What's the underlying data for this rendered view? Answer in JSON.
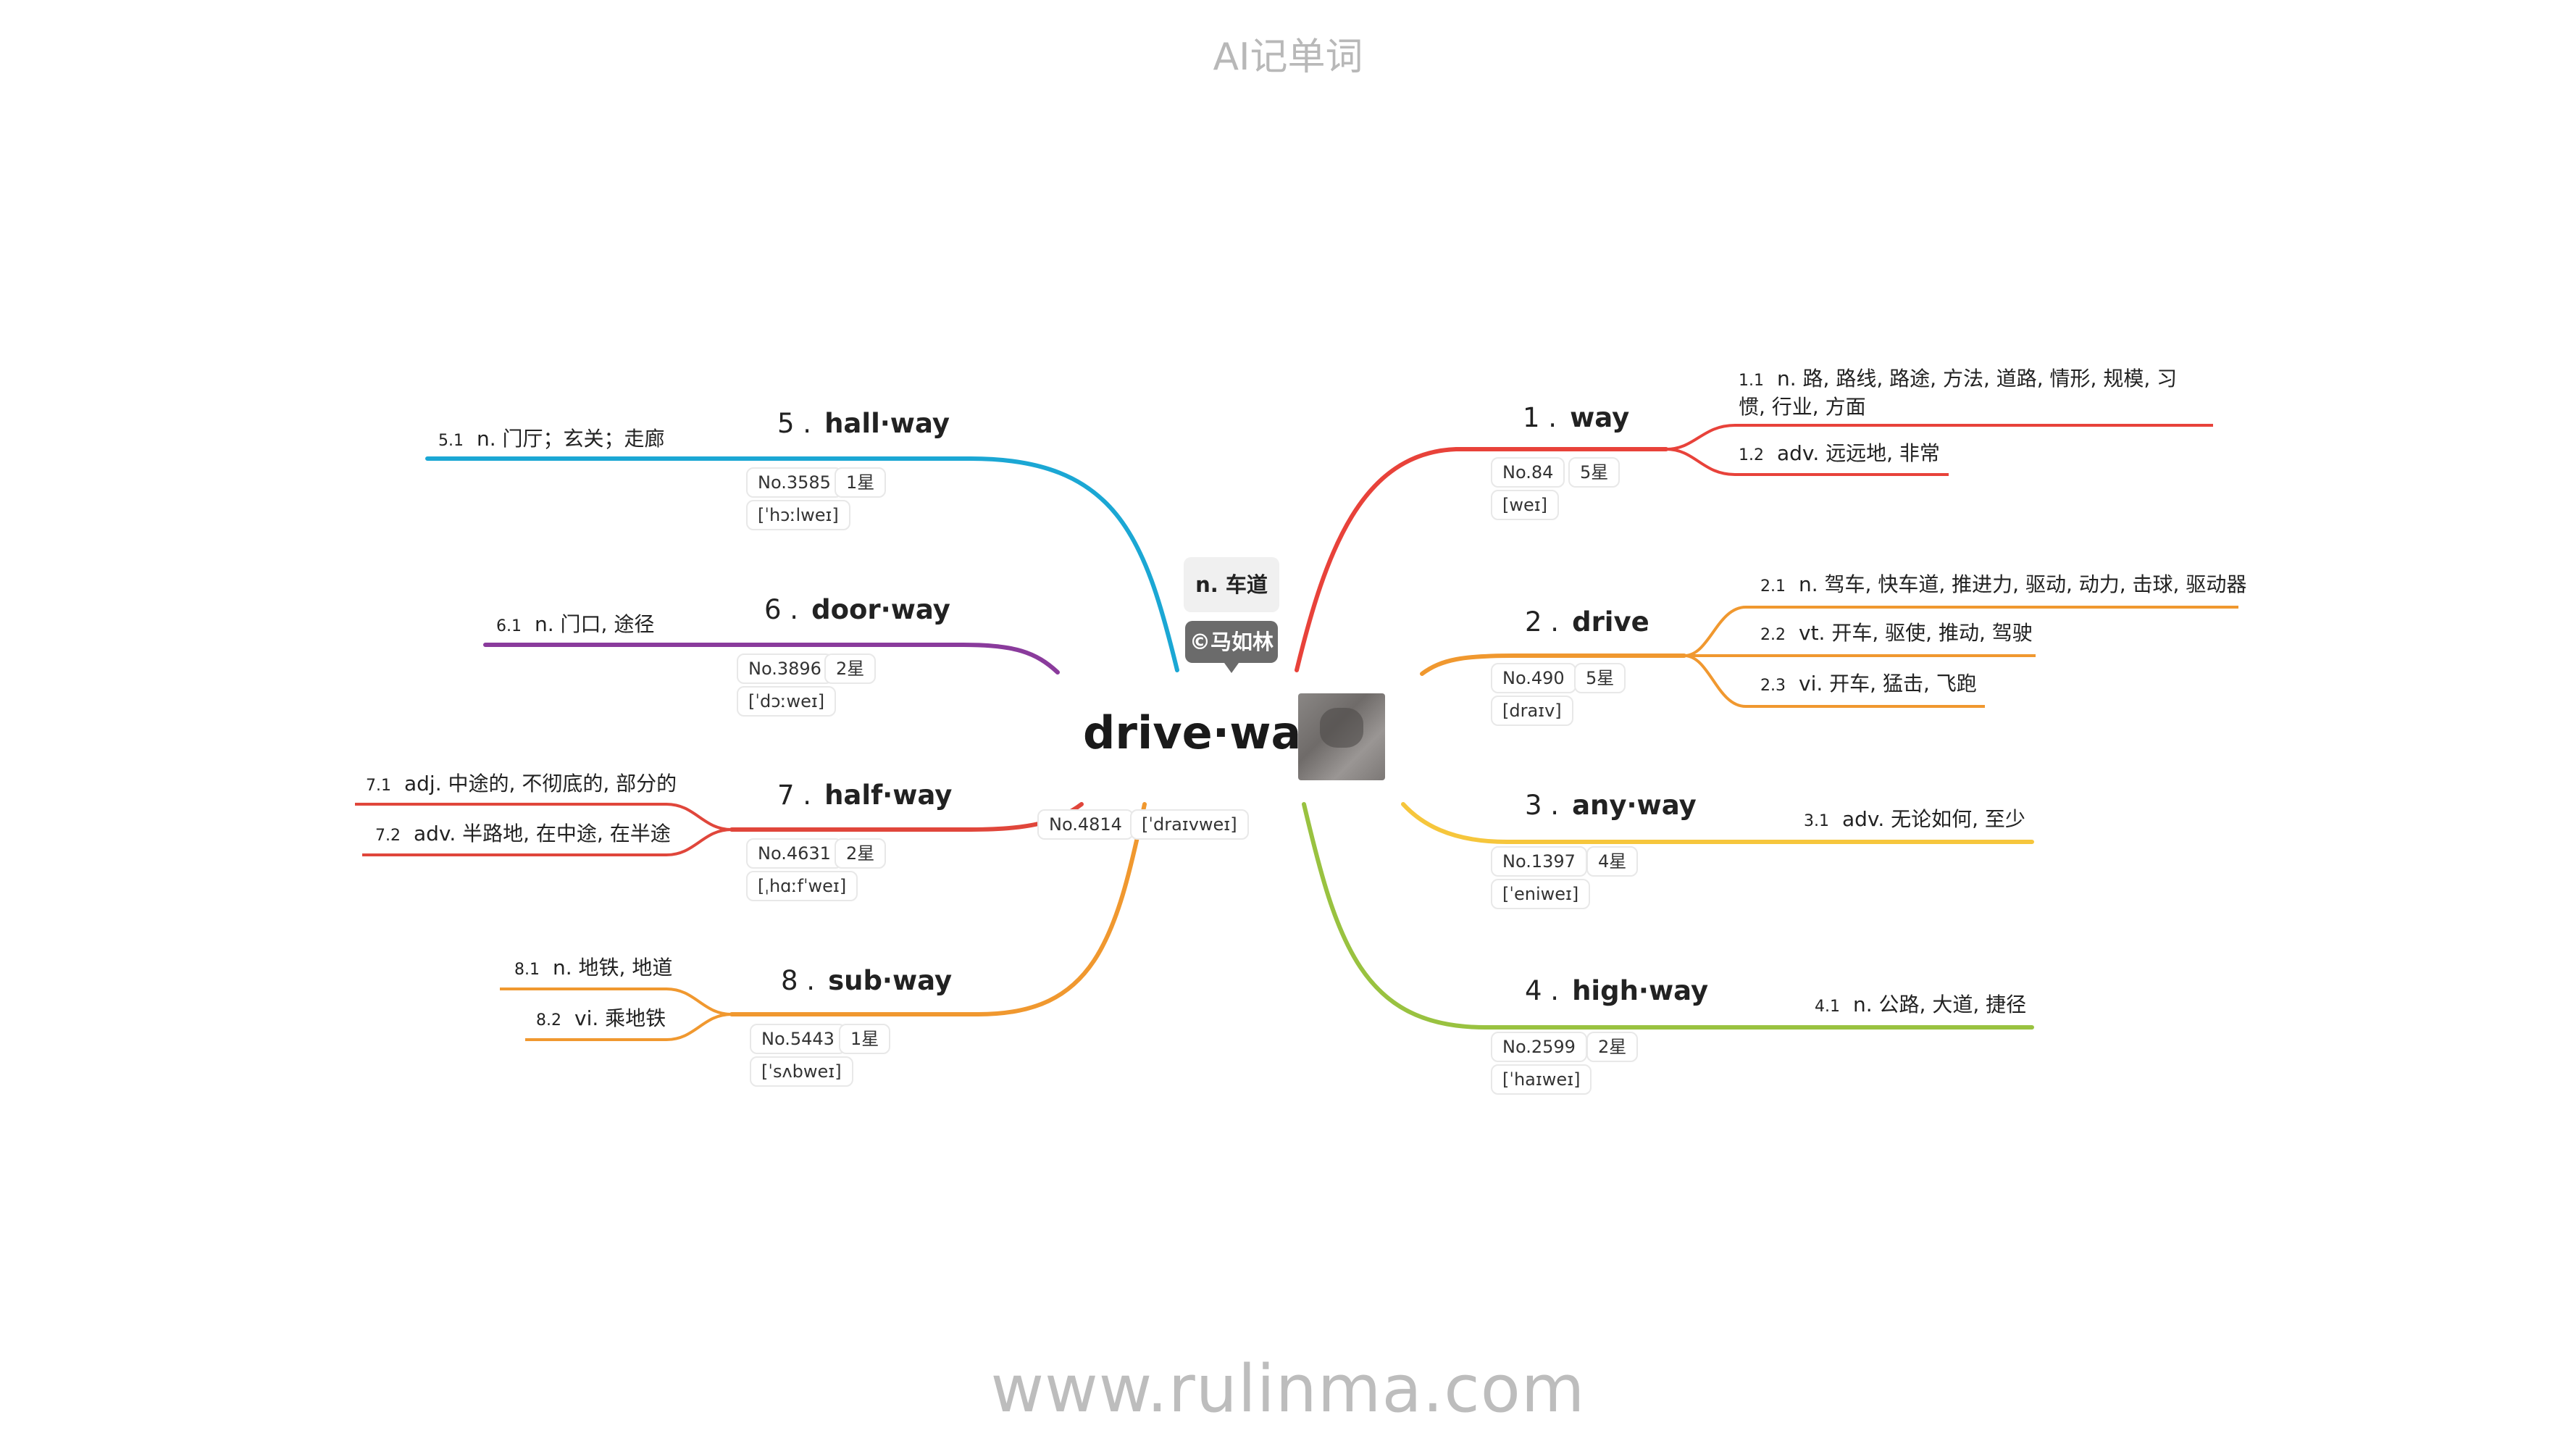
{
  "header": {
    "title": "AI记单词"
  },
  "footer": {
    "url": "www.rulinma.com"
  },
  "center": {
    "word": "drive·way",
    "meaning": "n. 车道",
    "author": "©马如林",
    "rank": "No.4814",
    "phonetic": "[ˈdraɪvweɪ]",
    "image_icon": "driveway-photo"
  },
  "colors": {
    "way": "#e8423a",
    "drive": "#f0982f",
    "anyway": "#f6c63c",
    "highway": "#99c240",
    "hallway": "#1ba7d4",
    "doorway": "#8a3b9c",
    "halfway": "#e0463b",
    "subway": "#f0982f"
  },
  "branches": [
    {
      "id": "way",
      "num": "1 .",
      "word": "way",
      "rank": "No.84",
      "stars": "5星",
      "phonetic": "[weɪ]",
      "senses": [
        {
          "n": "1.1",
          "text": "n. 路, 路线, 路途, 方法, 道路, 情形, 规模, 习惯, 行业, 方面"
        },
        {
          "n": "1.2",
          "text": "adv. 远远地, 非常"
        }
      ]
    },
    {
      "id": "drive",
      "num": "2 .",
      "word": "drive",
      "rank": "No.490",
      "stars": "5星",
      "phonetic": "[draɪv]",
      "senses": [
        {
          "n": "2.1",
          "text": "n. 驾车, 快车道, 推进力, 驱动, 动力, 击球, 驱动器"
        },
        {
          "n": "2.2",
          "text": "vt. 开车, 驱使, 推动, 驾驶"
        },
        {
          "n": "2.3",
          "text": "vi. 开车, 猛击, 飞跑"
        }
      ]
    },
    {
      "id": "anyway",
      "num": "3 .",
      "word": "any·way",
      "rank": "No.1397",
      "stars": "4星",
      "phonetic": "[ˈeniweɪ]",
      "senses": [
        {
          "n": "3.1",
          "text": "adv. 无论如何, 至少"
        }
      ]
    },
    {
      "id": "highway",
      "num": "4 .",
      "word": "high·way",
      "rank": "No.2599",
      "stars": "2星",
      "phonetic": "[ˈhaɪweɪ]",
      "senses": [
        {
          "n": "4.1",
          "text": "n. 公路, 大道, 捷径"
        }
      ]
    },
    {
      "id": "hallway",
      "num": "5 .",
      "word": "hall·way",
      "rank": "No.3585",
      "stars": "1星",
      "phonetic": "[ˈhɔːlweɪ]",
      "senses": [
        {
          "n": "5.1",
          "text": "n. 门厅；玄关；走廊"
        }
      ]
    },
    {
      "id": "doorway",
      "num": "6 .",
      "word": "door·way",
      "rank": "No.3896",
      "stars": "2星",
      "phonetic": "[ˈdɔːweɪ]",
      "senses": [
        {
          "n": "6.1",
          "text": "n. 门口, 途径"
        }
      ]
    },
    {
      "id": "halfway",
      "num": "7 .",
      "word": "half·way",
      "rank": "No.4631",
      "stars": "2星",
      "phonetic": "[ˌhɑːfˈweɪ]",
      "senses": [
        {
          "n": "7.1",
          "text": "adj. 中途的, 不彻底的, 部分的"
        },
        {
          "n": "7.2",
          "text": "adv. 半路地, 在中途, 在半途"
        }
      ]
    },
    {
      "id": "subway",
      "num": "8 .",
      "word": "sub·way",
      "rank": "No.5443",
      "stars": "1星",
      "phonetic": "[ˈsʌbweɪ]",
      "senses": [
        {
          "n": "8.1",
          "text": "n. 地铁, 地道"
        },
        {
          "n": "8.2",
          "text": "vi. 乘地铁"
        }
      ]
    }
  ]
}
